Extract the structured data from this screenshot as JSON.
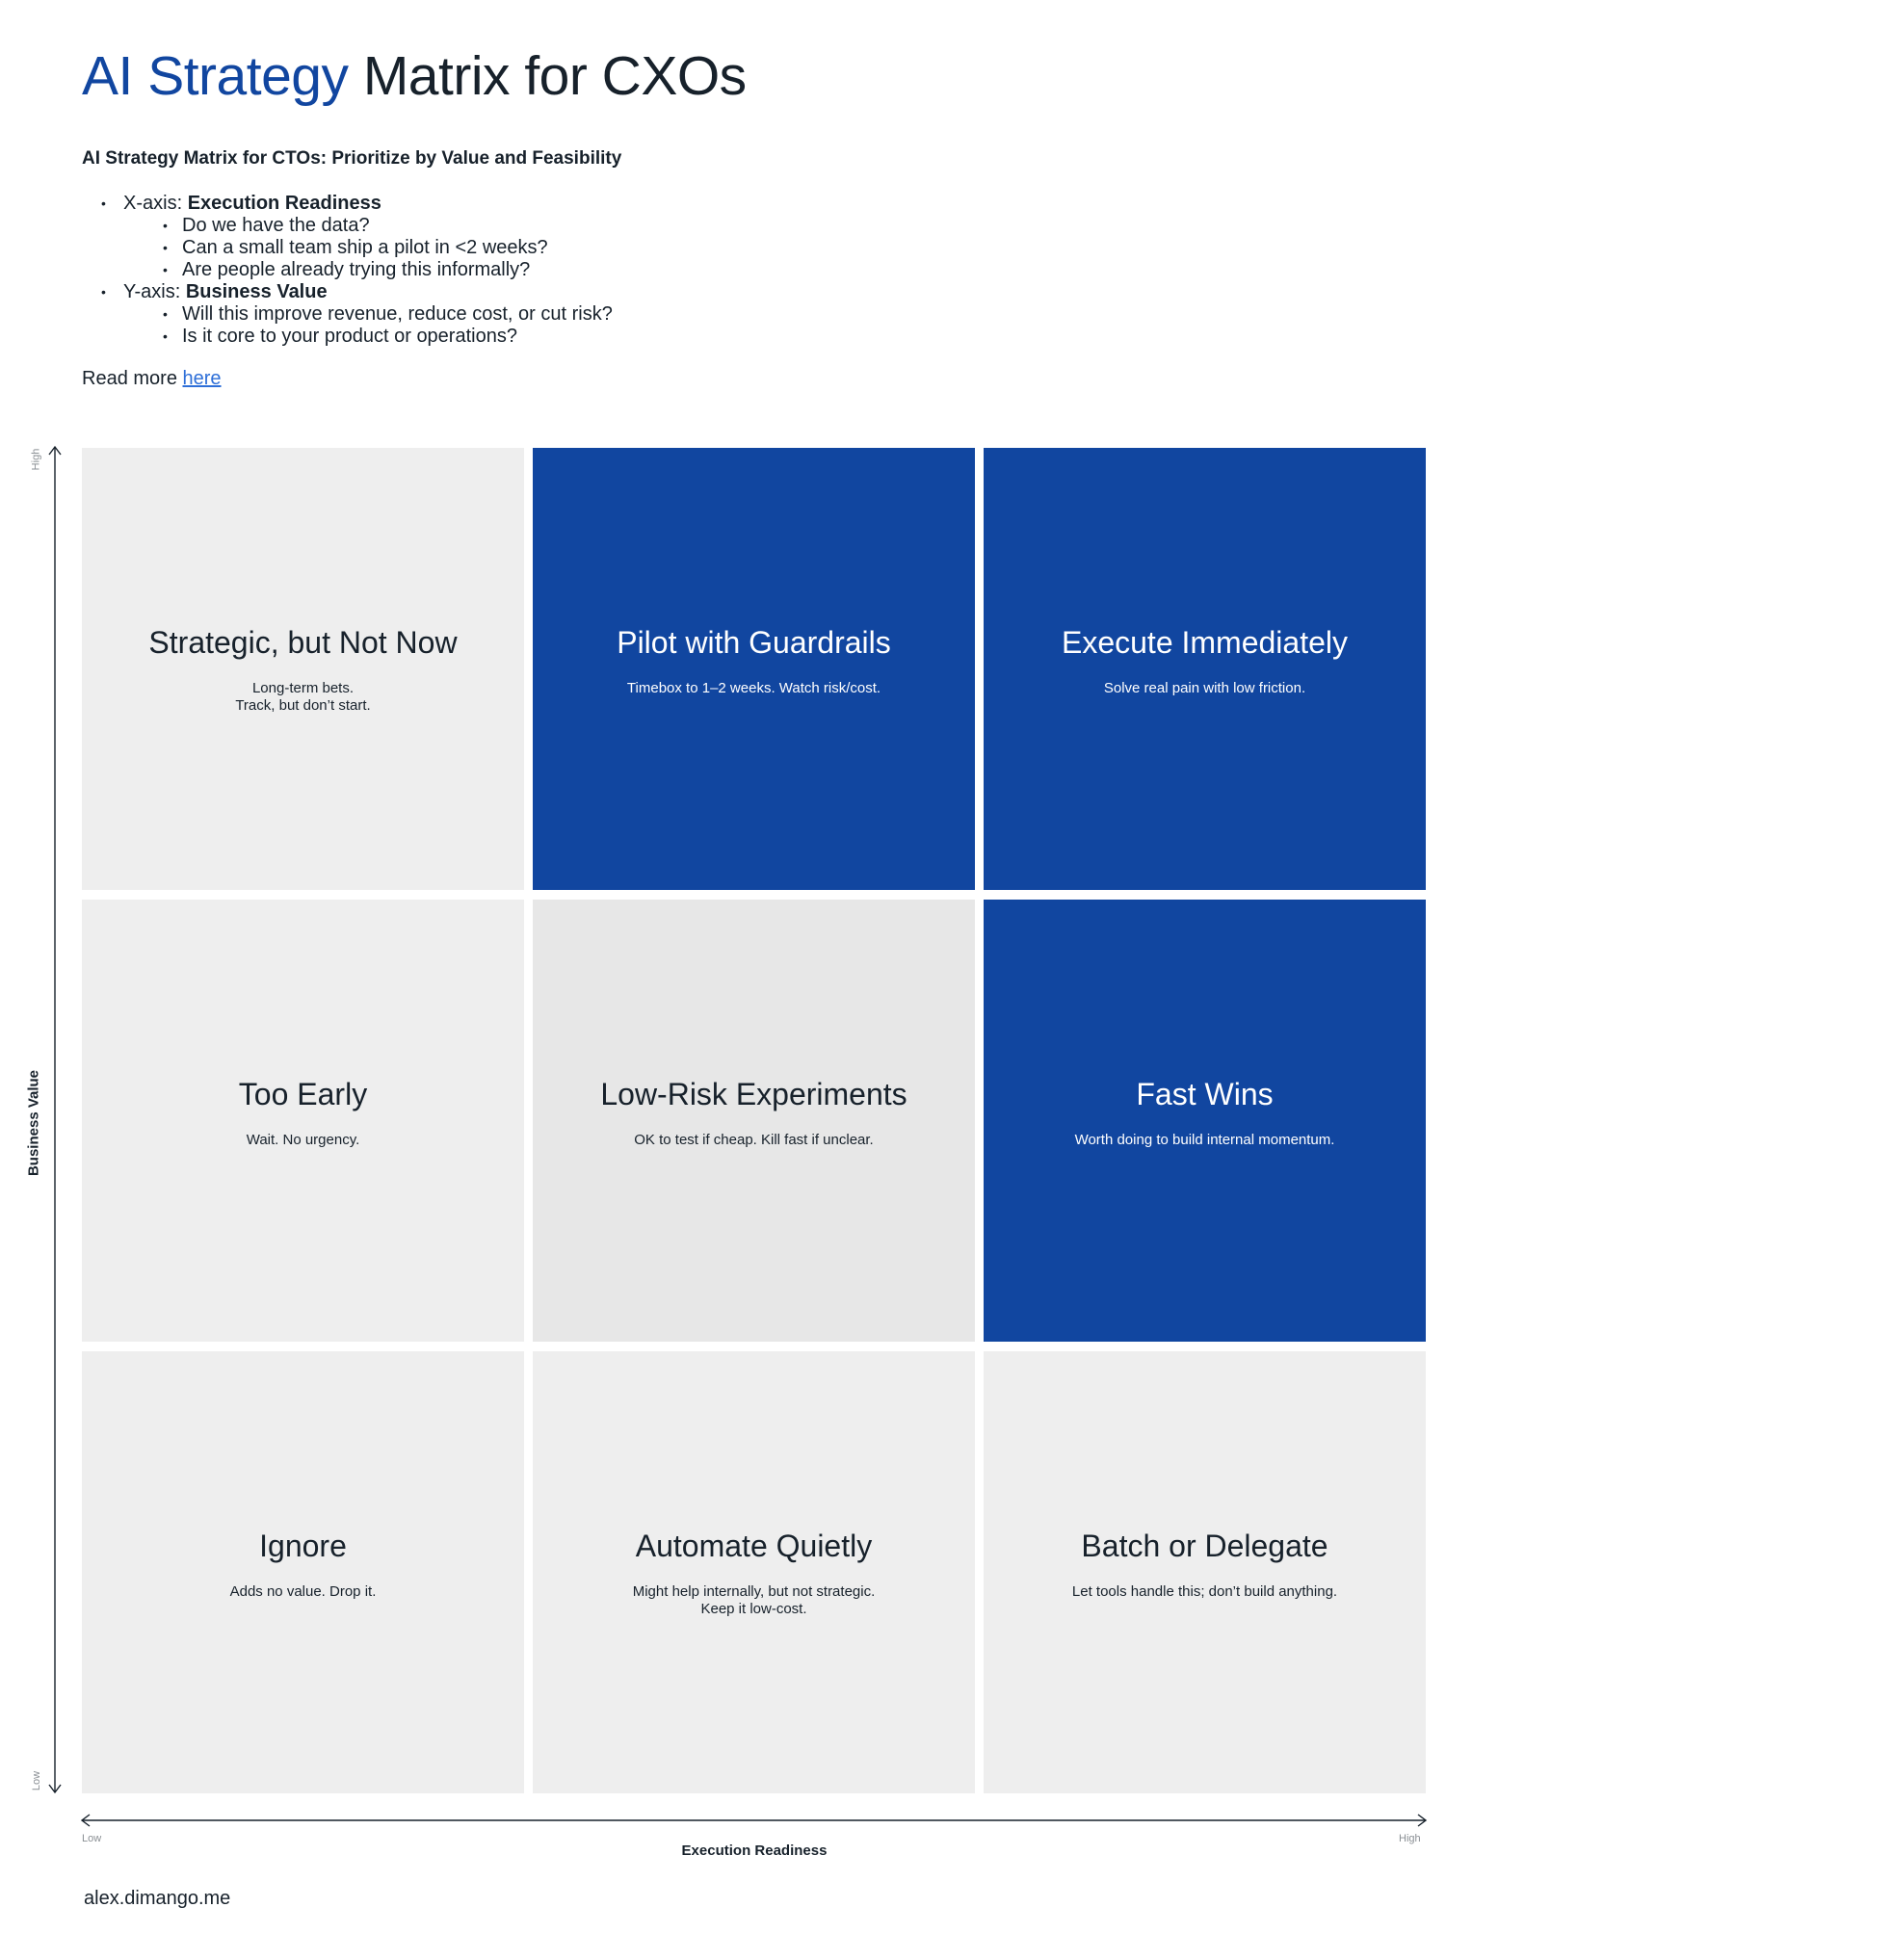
{
  "header": {
    "title_accent": "AI Strategy",
    "title_rest": "Matrix for CXOs",
    "subtitle": "AI Strategy Matrix for CTOs: Prioritize by Value and Feasibility"
  },
  "criteria": [
    {
      "prefix": "X-axis: ",
      "name": "Execution Readiness",
      "questions": [
        "Do we have the data?",
        "Can a small team ship a pilot in <2 weeks?",
        "Are people already trying this informally?"
      ]
    },
    {
      "prefix": "Y-axis: ",
      "name": "Business Value",
      "questions": [
        "Will this improve revenue, reduce cost, or cut risk?",
        "Is it core to your product or operations?"
      ]
    }
  ],
  "read_more": {
    "text": "Read more ",
    "link_text": "here"
  },
  "colors": {
    "accent": "#1146a0",
    "cell_light": "#eeeeee",
    "cell_mid": "#e7e7e7",
    "text_dark": "#17212b",
    "link": "#2e6fd8"
  },
  "matrix": {
    "cells": [
      {
        "title": "Strategic, but Not Now",
        "desc": "Long-term bets.\nTrack, but don’t start.",
        "value": "High",
        "readiness": "Low",
        "style": "light"
      },
      {
        "title": "Pilot with Guardrails",
        "desc": "Timebox to 1–2 weeks. Watch risk/cost.",
        "value": "High",
        "readiness": "Medium",
        "style": "blue"
      },
      {
        "title": "Execute Immediately",
        "desc": "Solve real pain with low friction.",
        "value": "High",
        "readiness": "High",
        "style": "blue"
      },
      {
        "title": "Too Early",
        "desc": "Wait. No urgency.",
        "value": "Medium",
        "readiness": "Low",
        "style": "light"
      },
      {
        "title": "Low-Risk Experiments",
        "desc": "OK to test if cheap. Kill fast if unclear.",
        "value": "Medium",
        "readiness": "Medium",
        "style": "mid"
      },
      {
        "title": "Fast Wins",
        "desc": "Worth doing to build internal momentum.",
        "value": "Medium",
        "readiness": "High",
        "style": "blue"
      },
      {
        "title": "Ignore",
        "desc": "Adds no value. Drop it.",
        "value": "Low",
        "readiness": "Low",
        "style": "light"
      },
      {
        "title": "Automate Quietly",
        "desc": "Might help internally, but not strategic.\nKeep it low-cost.",
        "value": "Low",
        "readiness": "Medium",
        "style": "light"
      },
      {
        "title": "Batch or Delegate",
        "desc": "Let tools handle this; don’t build anything.",
        "value": "Low",
        "readiness": "High",
        "style": "light"
      }
    ],
    "y_axis": {
      "label": "Business Value",
      "high": "High",
      "low": "Low"
    },
    "x_axis": {
      "label": "Execution Readiness",
      "low": "Low",
      "high": "High"
    }
  },
  "footer": "alex.dimango.me"
}
